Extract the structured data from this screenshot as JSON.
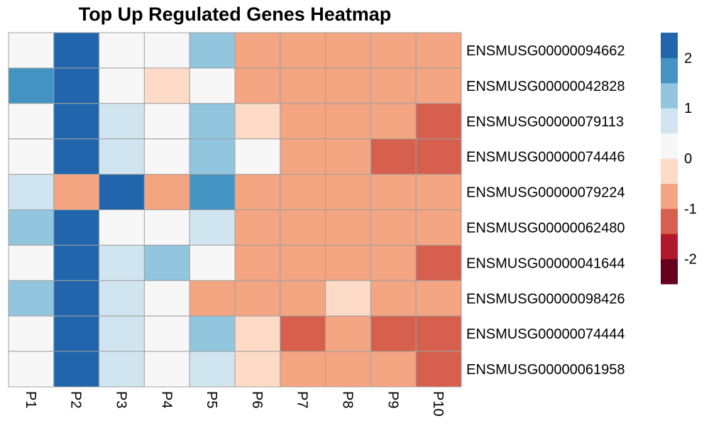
{
  "chart_data": {
    "type": "heatmap",
    "title": "Top Up Regulated Genes Heatmap",
    "columns": [
      "P1",
      "P2",
      "P3",
      "P4",
      "P5",
      "P6",
      "P7",
      "P8",
      "P9",
      "P10"
    ],
    "rows": [
      "ENSMUSG00000094662",
      "ENSMUSG00000042828",
      "ENSMUSG00000079113",
      "ENSMUSG00000074446",
      "ENSMUSG00000079224",
      "ENSMUSG00000062480",
      "ENSMUSG00000041644",
      "ENSMUSG00000098426",
      "ENSMUSG00000074444",
      "ENSMUSG00000061958"
    ],
    "values": [
      [
        0.0,
        2.3,
        0.3,
        0.3,
        1.2,
        -0.8,
        -0.8,
        -0.8,
        -0.8,
        -0.8
      ],
      [
        1.6,
        2.3,
        0.0,
        -0.3,
        0.3,
        -0.8,
        -0.8,
        -0.8,
        -0.8,
        -0.8
      ],
      [
        0.0,
        2.3,
        0.8,
        0.3,
        1.2,
        -0.3,
        -0.8,
        -0.8,
        -0.8,
        -1.3
      ],
      [
        0.0,
        2.3,
        0.8,
        0.0,
        1.2,
        0.0,
        -0.8,
        -0.8,
        -1.3,
        -1.3
      ],
      [
        0.8,
        -0.8,
        2.3,
        -0.8,
        1.6,
        -0.8,
        -0.8,
        -0.8,
        -0.8,
        -0.8
      ],
      [
        1.2,
        2.3,
        0.0,
        0.3,
        0.8,
        -0.8,
        -0.8,
        -0.8,
        -0.8,
        -0.8
      ],
      [
        0.3,
        2.3,
        0.8,
        1.2,
        0.3,
        -0.8,
        -0.8,
        -0.8,
        -0.8,
        -1.3
      ],
      [
        1.2,
        2.3,
        0.8,
        0.0,
        -0.8,
        -0.8,
        -0.8,
        -0.3,
        -0.8,
        -0.8
      ],
      [
        0.3,
        2.3,
        0.8,
        0.0,
        1.2,
        -0.3,
        -1.3,
        -0.8,
        -1.3,
        -1.3
      ],
      [
        0.3,
        2.3,
        0.8,
        0.0,
        0.8,
        -0.3,
        -0.8,
        -0.8,
        -0.8,
        -1.3
      ]
    ],
    "color_scale": {
      "range": [
        -2.5,
        2.5
      ],
      "bins": [
        -2.5,
        -2.0,
        -1.5,
        -1.0,
        -0.5,
        0.0,
        0.5,
        1.0,
        1.5,
        2.0,
        2.5
      ],
      "colors": [
        "#67001F",
        "#B2182B",
        "#D6604D",
        "#F4A582",
        "#FDDBC7",
        "#F7F7F7",
        "#D1E5F0",
        "#92C5DE",
        "#4393C3",
        "#2166AC",
        "#053061"
      ]
    },
    "legend": {
      "ticks": [
        2,
        1,
        0,
        -1,
        -2
      ],
      "labels": [
        "2",
        "1",
        "0",
        "-1",
        "-2"
      ],
      "position": "right"
    },
    "cell_border_color": "#A0A0A0"
  }
}
